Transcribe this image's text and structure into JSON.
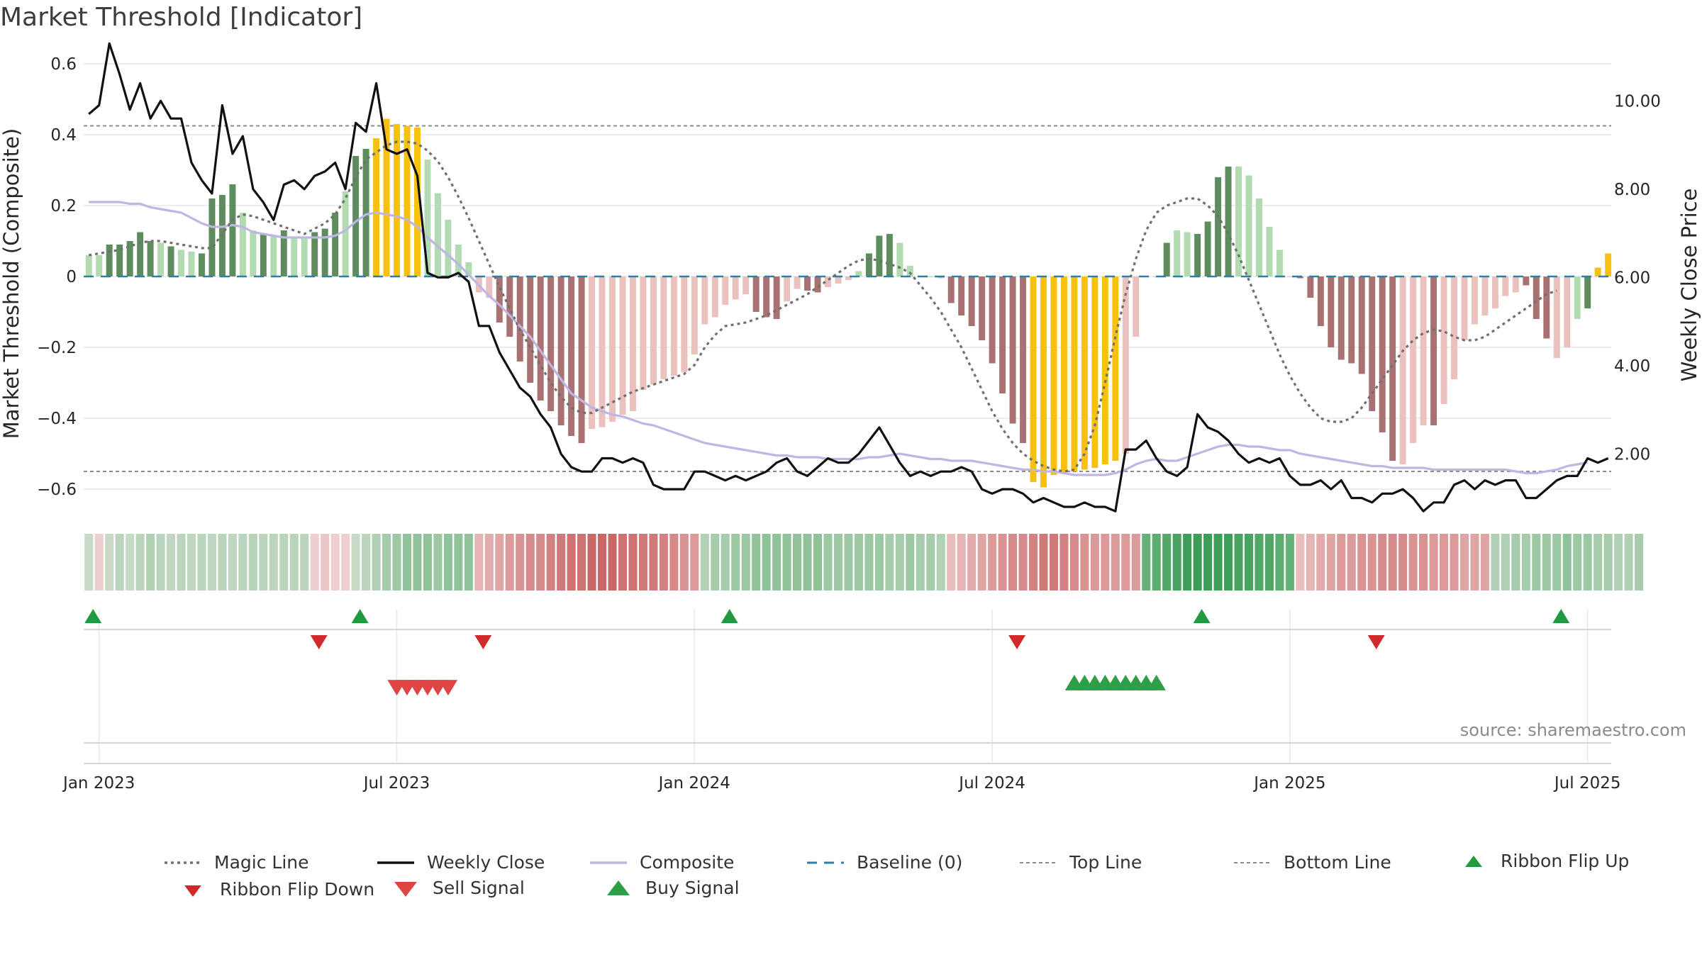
{
  "title": "Market Threshold [Indicator]",
  "source": "source: sharemaestro.com",
  "colors": {
    "bull_strong": "#5e8c5e",
    "bull_light": "#b2dbb2",
    "bear_strong": "#a87272",
    "bear_light": "#ebc1bd",
    "extreme": "#f6c20f",
    "weekly": "#111111",
    "composite": "#bfb6e2",
    "magic": "#707070",
    "baseline": "#2f7fa6",
    "threshold": "#8c8c8c",
    "buy": "#1f9a3e",
    "sell": "#d02a2a"
  },
  "chart_data": {
    "type": "bar+line",
    "title": "Market Threshold [Indicator]",
    "ylabel": "Market Threshold (Composite)",
    "y2label": "Weekly Close Price",
    "ylim": [
      -0.65,
      0.62
    ],
    "y2lim": [
      0.8,
      11.0
    ],
    "yticks": [
      "0.6",
      "0.4",
      "0.2",
      "0",
      "−0.2",
      "−0.4",
      "−0.6"
    ],
    "yticks_values": [
      0.6,
      0.4,
      0.2,
      0,
      -0.2,
      -0.4,
      -0.6
    ],
    "y2ticks": [
      "10.00",
      "8.00",
      "6.00",
      "4.00",
      "2.00"
    ],
    "y2ticks_values": [
      10,
      8,
      6,
      4,
      2
    ],
    "xticks": [
      "Jan 2023",
      "Jul 2023",
      "Jan 2024",
      "Jul 2024",
      "Jan 2025",
      "Jul 2025"
    ],
    "xticks_week": [
      1,
      30,
      59,
      88,
      117,
      146
    ],
    "top_line": 0.425,
    "bottom_line": -0.55,
    "baseline": 0,
    "histogram": [
      0.06,
      0.06,
      0.09,
      0.09,
      0.1,
      0.125,
      0.1,
      0.095,
      0.085,
      0.075,
      0.07,
      0.065,
      0.22,
      0.23,
      0.26,
      0.18,
      0.13,
      0.12,
      0.115,
      0.13,
      0.11,
      0.11,
      0.125,
      0.135,
      0.18,
      0.24,
      0.34,
      0.36,
      0.39,
      0.445,
      0.43,
      0.425,
      0.42,
      0.33,
      0.235,
      0.16,
      0.09,
      0.04,
      -0.045,
      -0.06,
      -0.13,
      -0.17,
      -0.24,
      -0.3,
      -0.35,
      -0.38,
      -0.42,
      -0.45,
      -0.47,
      -0.43,
      -0.425,
      -0.41,
      -0.39,
      -0.38,
      -0.32,
      -0.305,
      -0.29,
      -0.28,
      -0.27,
      -0.22,
      -0.135,
      -0.115,
      -0.08,
      -0.065,
      -0.05,
      -0.1,
      -0.115,
      -0.12,
      -0.07,
      -0.035,
      -0.04,
      -0.045,
      -0.03,
      -0.02,
      -0.01,
      0.015,
      0.065,
      0.115,
      0.12,
      0.095,
      0.03,
      0,
      0,
      -0.005,
      -0.075,
      -0.11,
      -0.14,
      -0.18,
      -0.245,
      -0.33,
      -0.415,
      -0.47,
      -0.58,
      -0.595,
      -0.56,
      -0.555,
      -0.55,
      -0.545,
      -0.54,
      -0.53,
      -0.52,
      -0.5,
      -0.17,
      0,
      0,
      0.095,
      0.13,
      0.125,
      0.12,
      0.155,
      0.28,
      0.31,
      0.31,
      0.285,
      0.22,
      0.14,
      0.075,
      0,
      -0.005,
      -0.06,
      -0.14,
      -0.2,
      -0.235,
      -0.245,
      -0.275,
      -0.38,
      -0.44,
      -0.52,
      -0.53,
      -0.47,
      -0.42,
      -0.42,
      -0.36,
      -0.29,
      -0.18,
      -0.135,
      -0.11,
      -0.09,
      -0.055,
      -0.045,
      -0.025,
      -0.12,
      -0.175,
      -0.23,
      -0.2,
      -0.12,
      -0.09,
      0.025,
      0.065
    ],
    "bar_class": [
      "bl",
      "bl",
      "bs",
      "bs",
      "bs",
      "bs",
      "bs",
      "bl",
      "bs",
      "bl",
      "bl",
      "bs",
      "bs",
      "bs",
      "bs",
      "bl",
      "bl",
      "bs",
      "bl",
      "bs",
      "bl",
      "bl",
      "bs",
      "bs",
      "bs",
      "bl",
      "bs",
      "bs",
      "x",
      "x",
      "x",
      "x",
      "x",
      "bl",
      "bl",
      "bl",
      "bl",
      "bl",
      "rl",
      "rl",
      "rs",
      "rs",
      "rs",
      "rs",
      "rs",
      "rs",
      "rs",
      "rs",
      "rs",
      "rl",
      "rl",
      "rl",
      "rl",
      "rl",
      "rl",
      "rl",
      "rl",
      "rl",
      "rl",
      "rl",
      "rl",
      "rl",
      "rl",
      "rl",
      "rl",
      "rs",
      "rs",
      "rs",
      "rl",
      "rl",
      "rs",
      "rs",
      "rl",
      "rl",
      "rl",
      "bl",
      "bs",
      "bs",
      "bs",
      "bl",
      "bl",
      "bl",
      "bl",
      "bl",
      "rs",
      "rs",
      "rs",
      "rs",
      "rs",
      "rs",
      "rs",
      "rs",
      "x",
      "x",
      "x",
      "x",
      "x",
      "x",
      "x",
      "x",
      "x",
      "rl",
      "rl",
      "bl",
      "bl",
      "bs",
      "bl",
      "bl",
      "bs",
      "bs",
      "bs",
      "bs",
      "bl",
      "bl",
      "bl",
      "bl",
      "bl",
      "rl",
      "rs",
      "rs",
      "rs",
      "rs",
      "rs",
      "rs",
      "rs",
      "rs",
      "rs",
      "rs",
      "rl",
      "rl",
      "rl",
      "rs",
      "rl",
      "rl",
      "rl",
      "rl",
      "rl",
      "rl",
      "rl",
      "rl",
      "rs",
      "rs",
      "rs",
      "rl",
      "rl",
      "bl",
      "bs"
    ],
    "weekly_close": [
      9.7,
      9.9,
      11.3,
      10.6,
      9.8,
      10.4,
      9.6,
      10.0,
      9.6,
      9.6,
      8.6,
      8.2,
      7.9,
      9.9,
      8.8,
      9.2,
      8.0,
      7.7,
      7.3,
      8.1,
      8.2,
      8.0,
      8.3,
      8.4,
      8.6,
      8.0,
      9.5,
      9.3,
      10.4,
      8.9,
      8.8,
      8.9,
      8.3,
      6.1,
      6.0,
      6.0,
      6.1,
      5.9,
      4.9,
      4.9,
      4.3,
      3.9,
      3.5,
      3.3,
      2.9,
      2.6,
      2.0,
      1.7,
      1.6,
      1.6,
      1.9,
      1.9,
      1.8,
      1.9,
      1.8,
      1.3,
      1.2,
      1.2,
      1.2,
      1.6,
      1.6,
      1.5,
      1.4,
      1.5,
      1.4,
      1.5,
      1.6,
      1.8,
      1.9,
      1.6,
      1.5,
      1.7,
      1.9,
      1.8,
      1.8,
      2.0,
      2.3,
      2.6,
      2.2,
      1.8,
      1.5,
      1.6,
      1.5,
      1.6,
      1.6,
      1.7,
      1.6,
      1.2,
      1.1,
      1.2,
      1.2,
      1.1,
      0.9,
      1.0,
      0.9,
      0.8,
      0.8,
      0.9,
      0.8,
      0.8,
      0.7,
      2.1,
      2.1,
      2.3,
      1.9,
      1.6,
      1.5,
      1.7,
      2.9,
      2.6,
      2.5,
      2.3,
      2.0,
      1.8,
      1.9,
      1.8,
      1.9,
      1.5,
      1.3,
      1.3,
      1.4,
      1.2,
      1.4,
      1.0,
      1.0,
      0.9,
      1.1,
      1.1,
      1.2,
      1.0,
      0.7,
      0.9,
      0.9,
      1.3,
      1.4,
      1.2,
      1.4,
      1.3,
      1.4,
      1.4,
      1.0,
      1.0,
      1.2,
      1.4,
      1.5,
      1.5,
      1.9,
      1.8,
      1.9
    ],
    "composite": [
      0.21,
      0.21,
      0.21,
      0.21,
      0.205,
      0.205,
      0.195,
      0.19,
      0.185,
      0.18,
      0.165,
      0.15,
      0.14,
      0.14,
      0.145,
      0.14,
      0.125,
      0.12,
      0.115,
      0.11,
      0.11,
      0.11,
      0.11,
      0.11,
      0.115,
      0.13,
      0.155,
      0.175,
      0.18,
      0.175,
      0.17,
      0.16,
      0.14,
      0.11,
      0.085,
      0.06,
      0.035,
      0.005,
      -0.025,
      -0.055,
      -0.08,
      -0.11,
      -0.14,
      -0.17,
      -0.21,
      -0.25,
      -0.29,
      -0.33,
      -0.35,
      -0.37,
      -0.38,
      -0.39,
      -0.395,
      -0.405,
      -0.415,
      -0.42,
      -0.43,
      -0.44,
      -0.45,
      -0.46,
      -0.47,
      -0.475,
      -0.48,
      -0.485,
      -0.49,
      -0.495,
      -0.5,
      -0.505,
      -0.505,
      -0.51,
      -0.51,
      -0.51,
      -0.515,
      -0.515,
      -0.515,
      -0.515,
      -0.51,
      -0.51,
      -0.505,
      -0.5,
      -0.505,
      -0.51,
      -0.515,
      -0.515,
      -0.52,
      -0.52,
      -0.52,
      -0.525,
      -0.53,
      -0.535,
      -0.54,
      -0.545,
      -0.545,
      -0.55,
      -0.55,
      -0.555,
      -0.56,
      -0.56,
      -0.56,
      -0.56,
      -0.555,
      -0.545,
      -0.53,
      -0.52,
      -0.515,
      -0.52,
      -0.52,
      -0.51,
      -0.5,
      -0.49,
      -0.48,
      -0.475,
      -0.475,
      -0.48,
      -0.48,
      -0.485,
      -0.49,
      -0.49,
      -0.5,
      -0.505,
      -0.51,
      -0.515,
      -0.52,
      -0.525,
      -0.53,
      -0.535,
      -0.535,
      -0.54,
      -0.54,
      -0.54,
      -0.54,
      -0.545,
      -0.545,
      -0.545,
      -0.545,
      -0.545,
      -0.545,
      -0.545,
      -0.545,
      -0.55,
      -0.555,
      -0.555,
      -0.55,
      -0.545,
      -0.535,
      -0.53,
      -0.525
    ],
    "magic_line": [
      0.06,
      0.065,
      0.07,
      0.075,
      0.085,
      0.095,
      0.1,
      0.1,
      0.095,
      0.09,
      0.085,
      0.08,
      0.08,
      0.12,
      0.16,
      0.175,
      0.17,
      0.16,
      0.15,
      0.14,
      0.13,
      0.12,
      0.135,
      0.15,
      0.175,
      0.22,
      0.28,
      0.33,
      0.35,
      0.37,
      0.38,
      0.38,
      0.375,
      0.355,
      0.325,
      0.28,
      0.225,
      0.165,
      0.1,
      0.035,
      -0.03,
      -0.09,
      -0.15,
      -0.2,
      -0.25,
      -0.3,
      -0.34,
      -0.37,
      -0.385,
      -0.385,
      -0.37,
      -0.355,
      -0.34,
      -0.325,
      -0.315,
      -0.305,
      -0.295,
      -0.285,
      -0.275,
      -0.25,
      -0.2,
      -0.165,
      -0.14,
      -0.135,
      -0.13,
      -0.12,
      -0.11,
      -0.095,
      -0.08,
      -0.065,
      -0.05,
      -0.03,
      -0.01,
      0.01,
      0.03,
      0.045,
      0.05,
      0.045,
      0.035,
      0.025,
      0.01,
      -0.025,
      -0.06,
      -0.1,
      -0.15,
      -0.2,
      -0.26,
      -0.32,
      -0.38,
      -0.43,
      -0.47,
      -0.5,
      -0.52,
      -0.535,
      -0.545,
      -0.55,
      -0.545,
      -0.5,
      -0.42,
      -0.3,
      -0.17,
      -0.05,
      0.05,
      0.13,
      0.18,
      0.2,
      0.21,
      0.22,
      0.22,
      0.2,
      0.17,
      0.12,
      0.06,
      -0.01,
      -0.08,
      -0.15,
      -0.22,
      -0.28,
      -0.33,
      -0.37,
      -0.4,
      -0.41,
      -0.41,
      -0.4,
      -0.37,
      -0.33,
      -0.29,
      -0.25,
      -0.21,
      -0.18,
      -0.16,
      -0.15,
      -0.155,
      -0.17,
      -0.18,
      -0.18,
      -0.17,
      -0.15,
      -0.13,
      -0.11,
      -0.09,
      -0.07,
      -0.05,
      -0.04
    ],
    "ribbon_tone": [
      0.25,
      -0.2,
      0.25,
      0.3,
      0.25,
      0.3,
      0.35,
      0.3,
      0.28,
      0.3,
      0.28,
      0.3,
      0.28,
      0.3,
      0.28,
      0.3,
      0.32,
      0.3,
      0.3,
      0.3,
      0.3,
      0.3,
      -0.2,
      -0.25,
      -0.2,
      -0.2,
      0.25,
      0.3,
      0.35,
      0.4,
      0.45,
      0.5,
      0.5,
      0.5,
      0.45,
      0.5,
      0.5,
      0.5,
      -0.35,
      -0.4,
      -0.45,
      -0.5,
      -0.55,
      -0.6,
      -0.6,
      -0.65,
      -0.7,
      -0.75,
      -0.75,
      -0.8,
      -0.8,
      -0.8,
      -0.75,
      -0.75,
      -0.7,
      -0.7,
      -0.65,
      -0.6,
      -0.55,
      -0.5,
      0.35,
      0.4,
      0.4,
      0.45,
      0.45,
      0.5,
      0.5,
      0.5,
      0.5,
      0.5,
      0.5,
      0.5,
      0.45,
      0.45,
      0.45,
      0.45,
      0.45,
      0.45,
      0.4,
      0.4,
      0.45,
      0.4,
      0.4,
      0.35,
      -0.3,
      -0.35,
      -0.4,
      -0.45,
      -0.5,
      -0.55,
      -0.6,
      -0.6,
      -0.65,
      -0.7,
      -0.7,
      -0.65,
      -0.6,
      -0.55,
      -0.5,
      -0.5,
      -0.5,
      -0.5,
      -0.5,
      0.7,
      0.75,
      0.8,
      0.85,
      0.9,
      0.9,
      0.9,
      0.9,
      0.9,
      0.85,
      0.85,
      0.8,
      0.8,
      0.75,
      0.7,
      -0.3,
      -0.35,
      -0.4,
      -0.45,
      -0.5,
      -0.5,
      -0.55,
      -0.55,
      -0.6,
      -0.6,
      -0.6,
      -0.55,
      -0.55,
      -0.5,
      -0.5,
      -0.5,
      -0.45,
      -0.45,
      -0.45,
      0.35,
      0.35,
      0.4,
      0.4,
      0.45,
      0.45,
      0.45,
      0.5,
      0.45,
      0.45,
      0.4,
      0.4,
      0.35,
      0.35,
      0.4
    ],
    "ribbon_flip_up_weeks": [
      0,
      26,
      62,
      108,
      143
    ],
    "ribbon_flip_down_weeks": [
      22,
      38,
      90,
      125
    ],
    "sell_signal_weeks": [
      30,
      31,
      32,
      33,
      34,
      35
    ],
    "buy_signal_weeks": [
      96,
      97,
      98,
      99,
      100,
      101,
      102,
      103,
      104
    ]
  },
  "legend": {
    "magic_line": "Magic Line",
    "weekly_close": "Weekly Close",
    "composite": "Composite",
    "baseline": "Baseline (0)",
    "top_line": "Top Line",
    "bottom_line": "Bottom Line",
    "ribbon_flip_up": "Ribbon Flip Up",
    "ribbon_flip_down": "Ribbon Flip Down",
    "sell_signal": "Sell Signal",
    "buy_signal": "Buy Signal"
  }
}
